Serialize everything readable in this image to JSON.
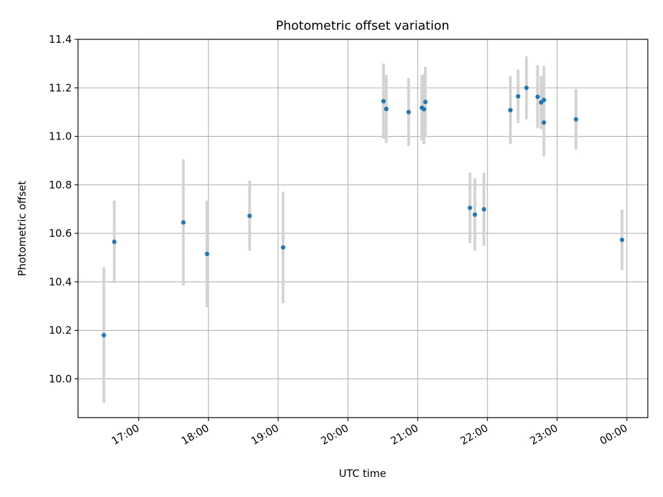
{
  "chart_data": {
    "type": "scatter",
    "title": "Photometric offset variation",
    "xlabel": "UTC time",
    "ylabel": "Photometric offset",
    "x_unit": "hours since 00:00 UTC (values over 24 fall on the following day)",
    "xlim": [
      16.13,
      24.3
    ],
    "ylim": [
      9.84,
      11.4
    ],
    "grid": true,
    "y_ticks": [
      {
        "value": 10.0,
        "label": "10.0"
      },
      {
        "value": 10.2,
        "label": "10.2"
      },
      {
        "value": 10.4,
        "label": "10.4"
      },
      {
        "value": 10.6,
        "label": "10.6"
      },
      {
        "value": 10.8,
        "label": "10.8"
      },
      {
        "value": 11.0,
        "label": "11.0"
      },
      {
        "value": 11.2,
        "label": "11.2"
      },
      {
        "value": 11.4,
        "label": "11.4"
      }
    ],
    "x_ticks": [
      {
        "value": 17,
        "label": "17:00"
      },
      {
        "value": 18,
        "label": "18:00"
      },
      {
        "value": 19,
        "label": "19:00"
      },
      {
        "value": 20,
        "label": "20:00"
      },
      {
        "value": 21,
        "label": "21:00"
      },
      {
        "value": 22,
        "label": "22:00"
      },
      {
        "value": 23,
        "label": "23:00"
      },
      {
        "value": 24,
        "label": "00:00"
      }
    ],
    "marker_color": "#1f77b4",
    "errorbar_color": "#d3d3d3",
    "points": [
      {
        "x": 16.5,
        "y": 10.18,
        "yerr": 0.28
      },
      {
        "x": 16.65,
        "y": 10.565,
        "yerr": 0.17
      },
      {
        "x": 17.64,
        "y": 10.645,
        "yerr": 0.26
      },
      {
        "x": 17.98,
        "y": 10.515,
        "yerr": 0.22
      },
      {
        "x": 18.59,
        "y": 10.672,
        "yerr": 0.145
      },
      {
        "x": 19.07,
        "y": 10.542,
        "yerr": 0.23
      },
      {
        "x": 20.51,
        "y": 11.145,
        "yerr": 0.155
      },
      {
        "x": 20.55,
        "y": 11.113,
        "yerr": 0.14
      },
      {
        "x": 20.87,
        "y": 11.1,
        "yerr": 0.14
      },
      {
        "x": 21.06,
        "y": 11.118,
        "yerr": 0.135
      },
      {
        "x": 21.09,
        "y": 11.112,
        "yerr": 0.145
      },
      {
        "x": 21.11,
        "y": 11.142,
        "yerr": 0.145
      },
      {
        "x": 21.75,
        "y": 10.705,
        "yerr": 0.145
      },
      {
        "x": 21.82,
        "y": 10.677,
        "yerr": 0.15
      },
      {
        "x": 21.95,
        "y": 10.699,
        "yerr": 0.15
      },
      {
        "x": 22.33,
        "y": 11.108,
        "yerr": 0.14
      },
      {
        "x": 22.44,
        "y": 11.165,
        "yerr": 0.11
      },
      {
        "x": 22.56,
        "y": 11.2,
        "yerr": 0.13
      },
      {
        "x": 22.72,
        "y": 11.163,
        "yerr": 0.13
      },
      {
        "x": 22.77,
        "y": 11.14,
        "yerr": 0.11
      },
      {
        "x": 22.81,
        "y": 11.15,
        "yerr": 0.14
      },
      {
        "x": 22.81,
        "y": 11.057,
        "yerr": 0.14
      },
      {
        "x": 23.27,
        "y": 11.07,
        "yerr": 0.125
      },
      {
        "x": 23.93,
        "y": 10.573,
        "yerr": 0.125
      }
    ]
  }
}
